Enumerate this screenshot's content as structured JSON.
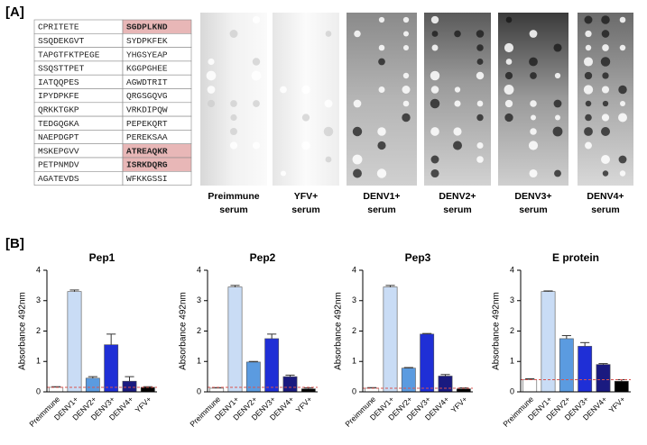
{
  "panel_a": {
    "label": "[A]",
    "table": {
      "rows": [
        [
          "CPRITETE",
          "SGDPLKND"
        ],
        [
          "SSQDEKGVT",
          "SYDPKFEK"
        ],
        [
          "TAPGTFKTPEGE",
          "YHGSYEAP"
        ],
        [
          "SSQSTTPET",
          "KGGPGHEE"
        ],
        [
          "IATQQPES",
          "AGWDTRIT"
        ],
        [
          "IPYDPKFE",
          "QRGSGQVG"
        ],
        [
          "QRKKTGKP",
          "VRKDIPQW"
        ],
        [
          "TEDGQGKA",
          "PEPEKQRT"
        ],
        [
          "NAEPDGPT",
          "PEREKSAA"
        ],
        [
          "MSKEPGVV",
          "ATREAQKR"
        ],
        [
          "PETPNMDV",
          "ISRKDQRG"
        ],
        [
          "AGATEVDS",
          "WFKKGSSI"
        ]
      ],
      "highlighted": [
        [
          0,
          1
        ],
        [
          9,
          1
        ],
        [
          10,
          1
        ]
      ]
    },
    "blots": [
      [
        "Preimmune",
        "serum"
      ],
      [
        "YFV+",
        "serum"
      ],
      [
        "DENV1+",
        "serum"
      ],
      [
        "DENV2+",
        "serum"
      ],
      [
        "DENV3+",
        "serum"
      ],
      [
        "DENV4+",
        "serum"
      ]
    ]
  },
  "panel_b": {
    "label": "[B]"
  },
  "chart_data": [
    {
      "type": "bar",
      "title": "Pep1",
      "ylabel": "Absorbance 492nm",
      "categories": [
        "Preimmune",
        "DENV1+",
        "DENV2+",
        "DENV3+",
        "DENV4+",
        "YFV+"
      ],
      "values": [
        0.15,
        3.3,
        0.45,
        1.55,
        0.35,
        0.15
      ],
      "errors": [
        0.02,
        0.05,
        0.05,
        0.35,
        0.15,
        0.02
      ],
      "colors": [
        "#ffffff",
        "#c9dcf5",
        "#5b9be0",
        "#1f2fd6",
        "#1a1a80",
        "#000000"
      ],
      "cutoff": 0.15,
      "cutoff_color": "#d9534f",
      "ylim": [
        0,
        4
      ],
      "yticks": [
        0,
        1,
        2,
        3,
        4
      ]
    },
    {
      "type": "bar",
      "title": "Pep2",
      "ylabel": "Absorbance 492nm",
      "categories": [
        "Preimmune",
        "DENV1+",
        "DENV2+",
        "DENV3+",
        "DENV4+",
        "YFV+"
      ],
      "values": [
        0.12,
        3.45,
        0.98,
        1.75,
        0.5,
        0.1
      ],
      "errors": [
        0.02,
        0.05,
        0.02,
        0.15,
        0.05,
        0.03
      ],
      "colors": [
        "#ffffff",
        "#c9dcf5",
        "#5b9be0",
        "#1f2fd6",
        "#1a1a80",
        "#000000"
      ],
      "cutoff": 0.15,
      "cutoff_color": "#d9534f",
      "ylim": [
        0,
        4
      ],
      "yticks": [
        0,
        1,
        2,
        3,
        4
      ]
    },
    {
      "type": "bar",
      "title": "Pep3",
      "ylabel": "Absorbance 492nm",
      "categories": [
        "Preimmune",
        "DENV1+",
        "DENV2+",
        "DENV3+",
        "DENV4+",
        "YFV+"
      ],
      "values": [
        0.12,
        3.45,
        0.78,
        1.9,
        0.52,
        0.1
      ],
      "errors": [
        0.02,
        0.05,
        0.02,
        0.02,
        0.05,
        0.03
      ],
      "colors": [
        "#ffffff",
        "#c9dcf5",
        "#5b9be0",
        "#1f2fd6",
        "#1a1a80",
        "#000000"
      ],
      "cutoff": 0.12,
      "cutoff_color": "#d9534f",
      "ylim": [
        0,
        4
      ],
      "yticks": [
        0,
        1,
        2,
        3,
        4
      ]
    },
    {
      "type": "bar",
      "title": "E protein",
      "ylabel": "Absorbance 492nm",
      "categories": [
        "Preimmune",
        "DENV1+",
        "DENV2+",
        "DENV3+",
        "DENV4+",
        "YFV+"
      ],
      "values": [
        0.4,
        3.3,
        1.75,
        1.5,
        0.9,
        0.35
      ],
      "errors": [
        0.03,
        0.02,
        0.1,
        0.12,
        0.03,
        0.05
      ],
      "colors": [
        "#ffffff",
        "#c9dcf5",
        "#5b9be0",
        "#1f2fd6",
        "#1a1a80",
        "#000000"
      ],
      "cutoff": 0.4,
      "cutoff_color": "#d9534f",
      "ylim": [
        0,
        4
      ],
      "yticks": [
        0,
        1,
        2,
        3,
        4
      ]
    }
  ]
}
